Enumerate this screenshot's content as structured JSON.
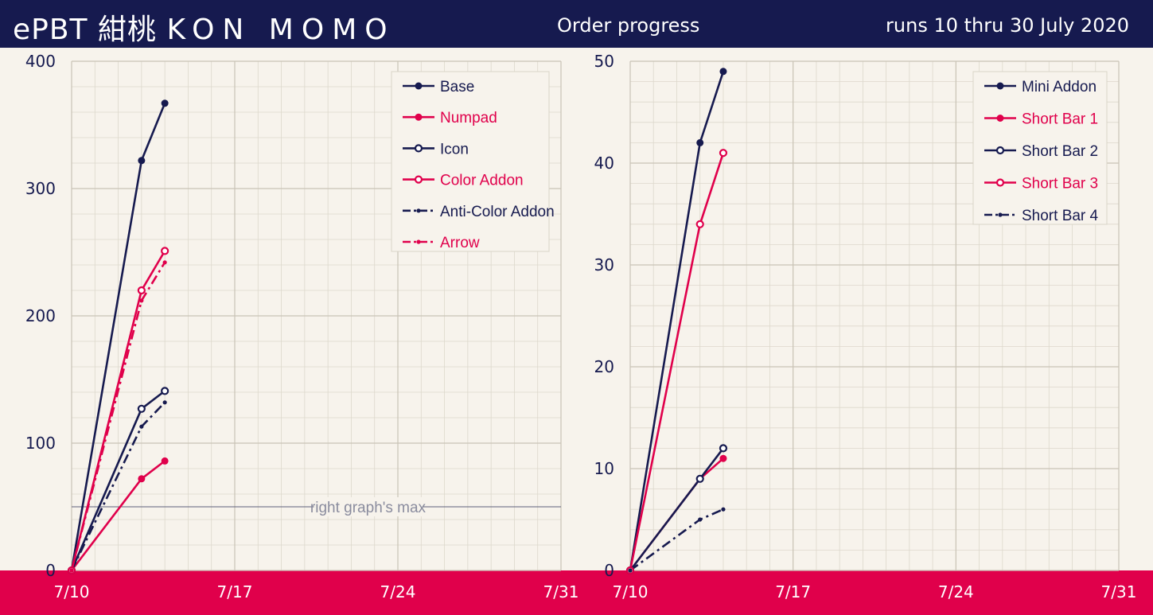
{
  "header": {
    "title_prefix": "ePBT 紺桃",
    "title_name": "KON MOMO",
    "subtitle": "Order progress",
    "date_range": "runs 10 thru 30 July 2020"
  },
  "colors": {
    "navy": "#161a4f",
    "pink": "#e0004b",
    "background": "#f7f3ec"
  },
  "chart_data": [
    {
      "type": "line",
      "x_ticks": [
        "7/10",
        "7/17",
        "7/24",
        "7/31"
      ],
      "xlim": [
        "7/10",
        "7/31"
      ],
      "ylim": [
        0,
        400
      ],
      "y_ticks": [
        0,
        100,
        200,
        300,
        400
      ],
      "grid": true,
      "legend": "top-right",
      "annotation": {
        "label": "right graph's max",
        "y": 50
      },
      "series": [
        {
          "name": "Base",
          "color": "#161a4f",
          "marker": "filled",
          "dash": "solid",
          "points": [
            [
              "7/10",
              0
            ],
            [
              "7/13",
              322
            ],
            [
              "7/14",
              367
            ]
          ]
        },
        {
          "name": "Numpad",
          "color": "#e0004b",
          "marker": "filled",
          "dash": "solid",
          "points": [
            [
              "7/10",
              0
            ],
            [
              "7/13",
              72
            ],
            [
              "7/14",
              86
            ]
          ]
        },
        {
          "name": "Icon",
          "color": "#161a4f",
          "marker": "open",
          "dash": "solid",
          "points": [
            [
              "7/10",
              0
            ],
            [
              "7/13",
              127
            ],
            [
              "7/14",
              141
            ]
          ]
        },
        {
          "name": "Color Addon",
          "color": "#e0004b",
          "marker": "open",
          "dash": "solid",
          "points": [
            [
              "7/10",
              0
            ],
            [
              "7/13",
              220
            ],
            [
              "7/14",
              251
            ]
          ]
        },
        {
          "name": "Anti-Color Addon",
          "color": "#161a4f",
          "marker": "small",
          "dash": "dashdot",
          "points": [
            [
              "7/10",
              0
            ],
            [
              "7/13",
              113
            ],
            [
              "7/14",
              132
            ]
          ]
        },
        {
          "name": "Arrow",
          "color": "#e0004b",
          "marker": "small",
          "dash": "dashdot",
          "points": [
            [
              "7/10",
              0
            ],
            [
              "7/13",
              212
            ],
            [
              "7/14",
              242
            ]
          ]
        }
      ]
    },
    {
      "type": "line",
      "x_ticks": [
        "7/10",
        "7/17",
        "7/24",
        "7/31"
      ],
      "xlim": [
        "7/10",
        "7/31"
      ],
      "ylim": [
        0,
        50
      ],
      "y_ticks": [
        0,
        10,
        20,
        30,
        40,
        50
      ],
      "grid": true,
      "legend": "top-right",
      "series": [
        {
          "name": "Mini Addon",
          "color": "#161a4f",
          "marker": "filled",
          "dash": "solid",
          "points": [
            [
              "7/10",
              0
            ],
            [
              "7/13",
              42
            ],
            [
              "7/14",
              49
            ]
          ]
        },
        {
          "name": "Short Bar 1",
          "color": "#e0004b",
          "marker": "filled",
          "dash": "solid",
          "points": [
            [
              "7/10",
              0
            ],
            [
              "7/13",
              9
            ],
            [
              "7/14",
              11
            ]
          ]
        },
        {
          "name": "Short Bar 2",
          "color": "#161a4f",
          "marker": "open",
          "dash": "solid",
          "points": [
            [
              "7/10",
              0
            ],
            [
              "7/13",
              9
            ],
            [
              "7/14",
              12
            ]
          ]
        },
        {
          "name": "Short Bar 3",
          "color": "#e0004b",
          "marker": "open",
          "dash": "solid",
          "points": [
            [
              "7/10",
              0
            ],
            [
              "7/13",
              34
            ],
            [
              "7/14",
              41
            ]
          ]
        },
        {
          "name": "Short Bar 4",
          "color": "#161a4f",
          "marker": "small",
          "dash": "dashdot",
          "points": [
            [
              "7/10",
              0
            ],
            [
              "7/13",
              5
            ],
            [
              "7/14",
              6
            ]
          ]
        }
      ]
    }
  ]
}
